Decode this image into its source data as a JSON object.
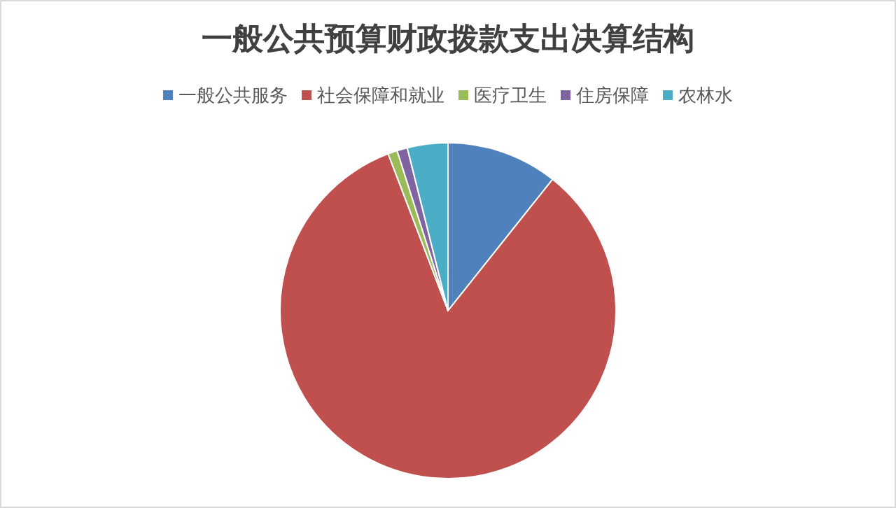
{
  "chart_data": {
    "type": "pie",
    "title": "一般公共预算财政拨款支出决算结构",
    "categories": [
      "一般公共服务",
      "社会保障和就业",
      "医疗卫生",
      "住房保障",
      "农林水"
    ],
    "values": [
      10.7,
      83.5,
      0.9,
      1.0,
      3.9
    ],
    "colors": [
      "#4f81bd",
      "#c0504d",
      "#9bbb59",
      "#8064a2",
      "#4bacc6"
    ],
    "legend": "top"
  }
}
